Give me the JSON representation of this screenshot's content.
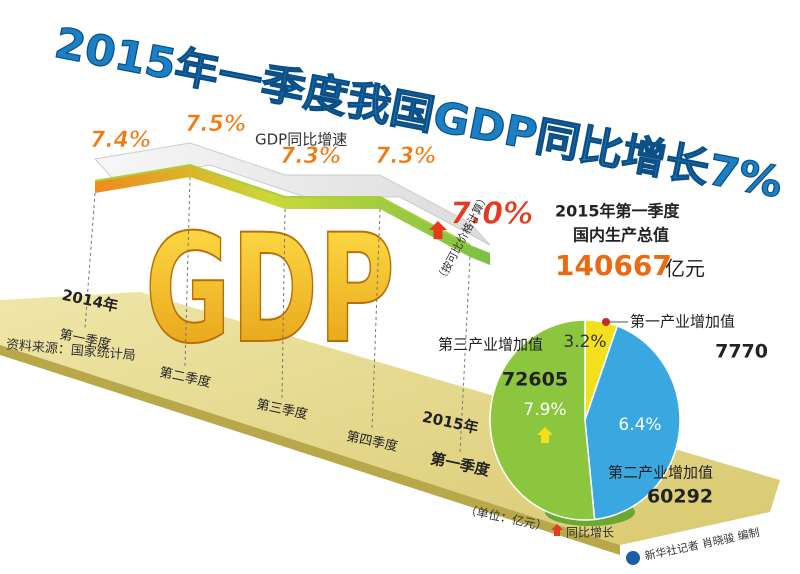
{
  "title": "2015年一季度我国GDP同比增长7%",
  "source": "资料来源：国家统计局",
  "credit": "新华社记者 肖晓骏 编制",
  "chart_data": [
    {
      "type": "line",
      "title": "GDP同比增速",
      "backdrop_text": "GDP",
      "categories": [
        "第一季度",
        "第二季度",
        "第三季度",
        "第四季度",
        "第一季度"
      ],
      "year_labels": [
        "2014年",
        null,
        null,
        null,
        "2015年"
      ],
      "values": [
        7.4,
        7.5,
        7.3,
        7.3,
        7.0
      ],
      "value_labels": [
        "7.4%",
        "7.5%",
        "7.3%",
        "7.3%",
        "7.0%"
      ],
      "note": "（按可比价格计算）",
      "ylim": [
        6.8,
        7.6
      ],
      "color": "#a8cf3c"
    },
    {
      "type": "pie",
      "title_lines": [
        "2015年第一季度",
        "国内生产总值"
      ],
      "total": 140667,
      "total_unit": "亿元",
      "unit_note": "（单位：亿元）",
      "growth_legend": "同比增长",
      "categories": [
        "第一产业增加值",
        "第二产业增加值",
        "第三产业增加值"
      ],
      "values": [
        7770,
        60292,
        72605
      ],
      "growth": [
        3.2,
        6.4,
        7.9
      ],
      "growth_labels": [
        "3.2%",
        "6.4%",
        "7.9%"
      ],
      "colors": [
        "#f3e01c",
        "#3aa8e0",
        "#8cc63f"
      ]
    }
  ]
}
